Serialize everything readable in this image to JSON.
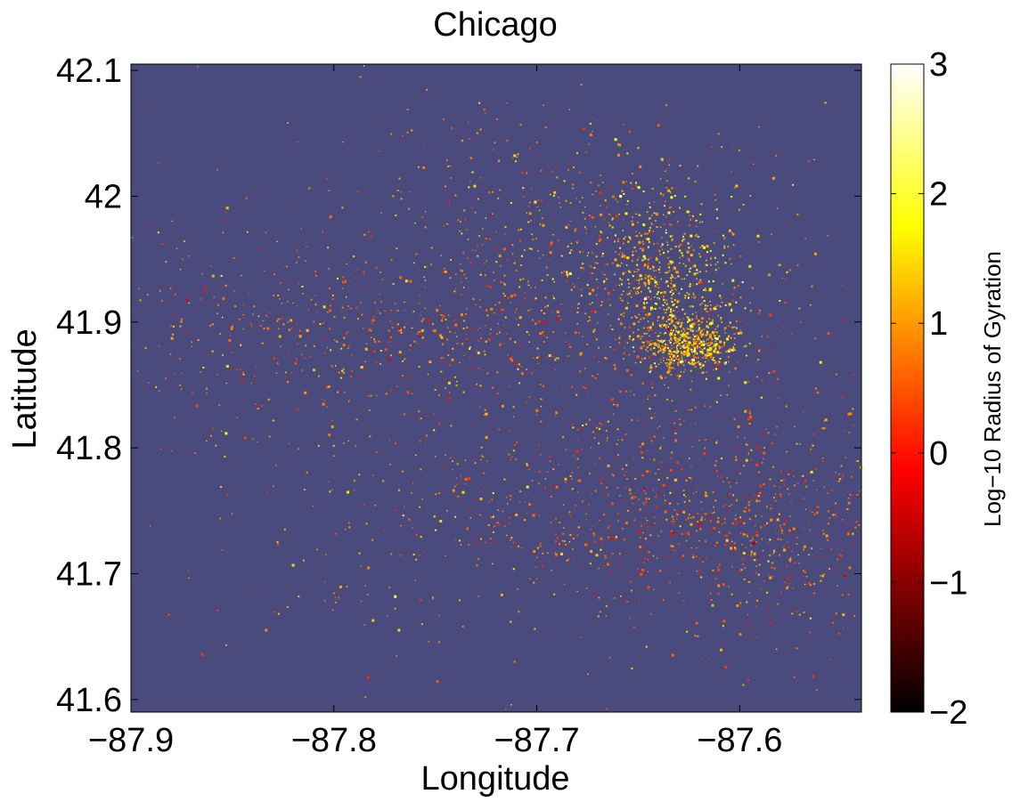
{
  "chart_data": {
    "type": "scatter",
    "title": "Chicago",
    "xlabel": "Longitude",
    "ylabel": "Latitude",
    "xlim": [
      -87.9,
      -87.54
    ],
    "ylim": [
      41.59,
      42.105
    ],
    "xticks": [
      -87.9,
      -87.8,
      -87.7,
      -87.6
    ],
    "yticks": [
      41.6,
      41.7,
      41.8,
      41.9,
      42.0,
      42.1
    ],
    "xtick_labels": [
      "−87.9",
      "−87.8",
      "−87.7",
      "−87.6"
    ],
    "ytick_labels": [
      "41.6",
      "41.7",
      "41.8",
      "41.9",
      "42",
      "42.1"
    ],
    "background_color": "#4a4a7c",
    "colorbar": {
      "label": "Log−10 Radius of Gyration",
      "colormap": "hot",
      "range": [
        -2,
        3
      ],
      "ticks": [
        -2,
        -1,
        0,
        1,
        2,
        3
      ],
      "tick_labels": [
        "−2",
        "−1",
        "0",
        "1",
        "2",
        "3"
      ]
    },
    "clusters": [
      {
        "lon": -87.625,
        "lat": 41.882,
        "spread_lon": 0.012,
        "spread_lat": 0.01,
        "weight": 10,
        "log_rg_mean": 1.3
      },
      {
        "lon": -87.635,
        "lat": 41.93,
        "spread_lon": 0.015,
        "spread_lat": 0.03,
        "weight": 8,
        "log_rg_mean": 1.4
      },
      {
        "lon": -87.655,
        "lat": 41.955,
        "spread_lon": 0.03,
        "spread_lat": 0.035,
        "weight": 7,
        "log_rg_mean": 1.2
      },
      {
        "lon": -87.7,
        "lat": 41.9,
        "spread_lon": 0.07,
        "spread_lat": 0.03,
        "weight": 8,
        "log_rg_mean": 0.8
      },
      {
        "lon": -87.78,
        "lat": 41.89,
        "spread_lon": 0.06,
        "spread_lat": 0.03,
        "weight": 5,
        "log_rg_mean": 0.7
      },
      {
        "lon": -87.65,
        "lat": 41.8,
        "spread_lon": 0.06,
        "spread_lat": 0.04,
        "weight": 6,
        "log_rg_mean": 0.7
      },
      {
        "lon": -87.6,
        "lat": 41.76,
        "spread_lon": 0.04,
        "spread_lat": 0.03,
        "weight": 6,
        "log_rg_mean": 0.6
      },
      {
        "lon": -87.64,
        "lat": 41.73,
        "spread_lon": 0.05,
        "spread_lat": 0.03,
        "weight": 6,
        "log_rg_mean": 0.6
      },
      {
        "lon": -87.58,
        "lat": 41.7,
        "spread_lon": 0.03,
        "spread_lat": 0.04,
        "weight": 3,
        "log_rg_mean": 0.7
      },
      {
        "lon": -87.69,
        "lat": 42.0,
        "spread_lon": 0.04,
        "spread_lat": 0.04,
        "weight": 3,
        "log_rg_mean": 0.8
      },
      {
        "lon": -87.85,
        "lat": 41.88,
        "spread_lon": 0.04,
        "spread_lat": 0.04,
        "weight": 3,
        "log_rg_mean": 0.9
      },
      {
        "lon": -87.76,
        "lat": 41.76,
        "spread_lon": 0.06,
        "spread_lat": 0.04,
        "weight": 3,
        "log_rg_mean": 1.0
      },
      {
        "lon": -87.74,
        "lat": 41.98,
        "spread_lon": 0.09,
        "spread_lat": 0.05,
        "weight": 3,
        "log_rg_mean": 0.9
      },
      {
        "lon": -87.72,
        "lat": 41.68,
        "spread_lon": 0.08,
        "spread_lat": 0.04,
        "weight": 2,
        "log_rg_mean": 0.9
      },
      {
        "lon": -87.72,
        "lat": 41.85,
        "spread_lon": 0.16,
        "spread_lat": 0.12,
        "weight": 4,
        "log_rg_mean": 0.9
      }
    ]
  }
}
